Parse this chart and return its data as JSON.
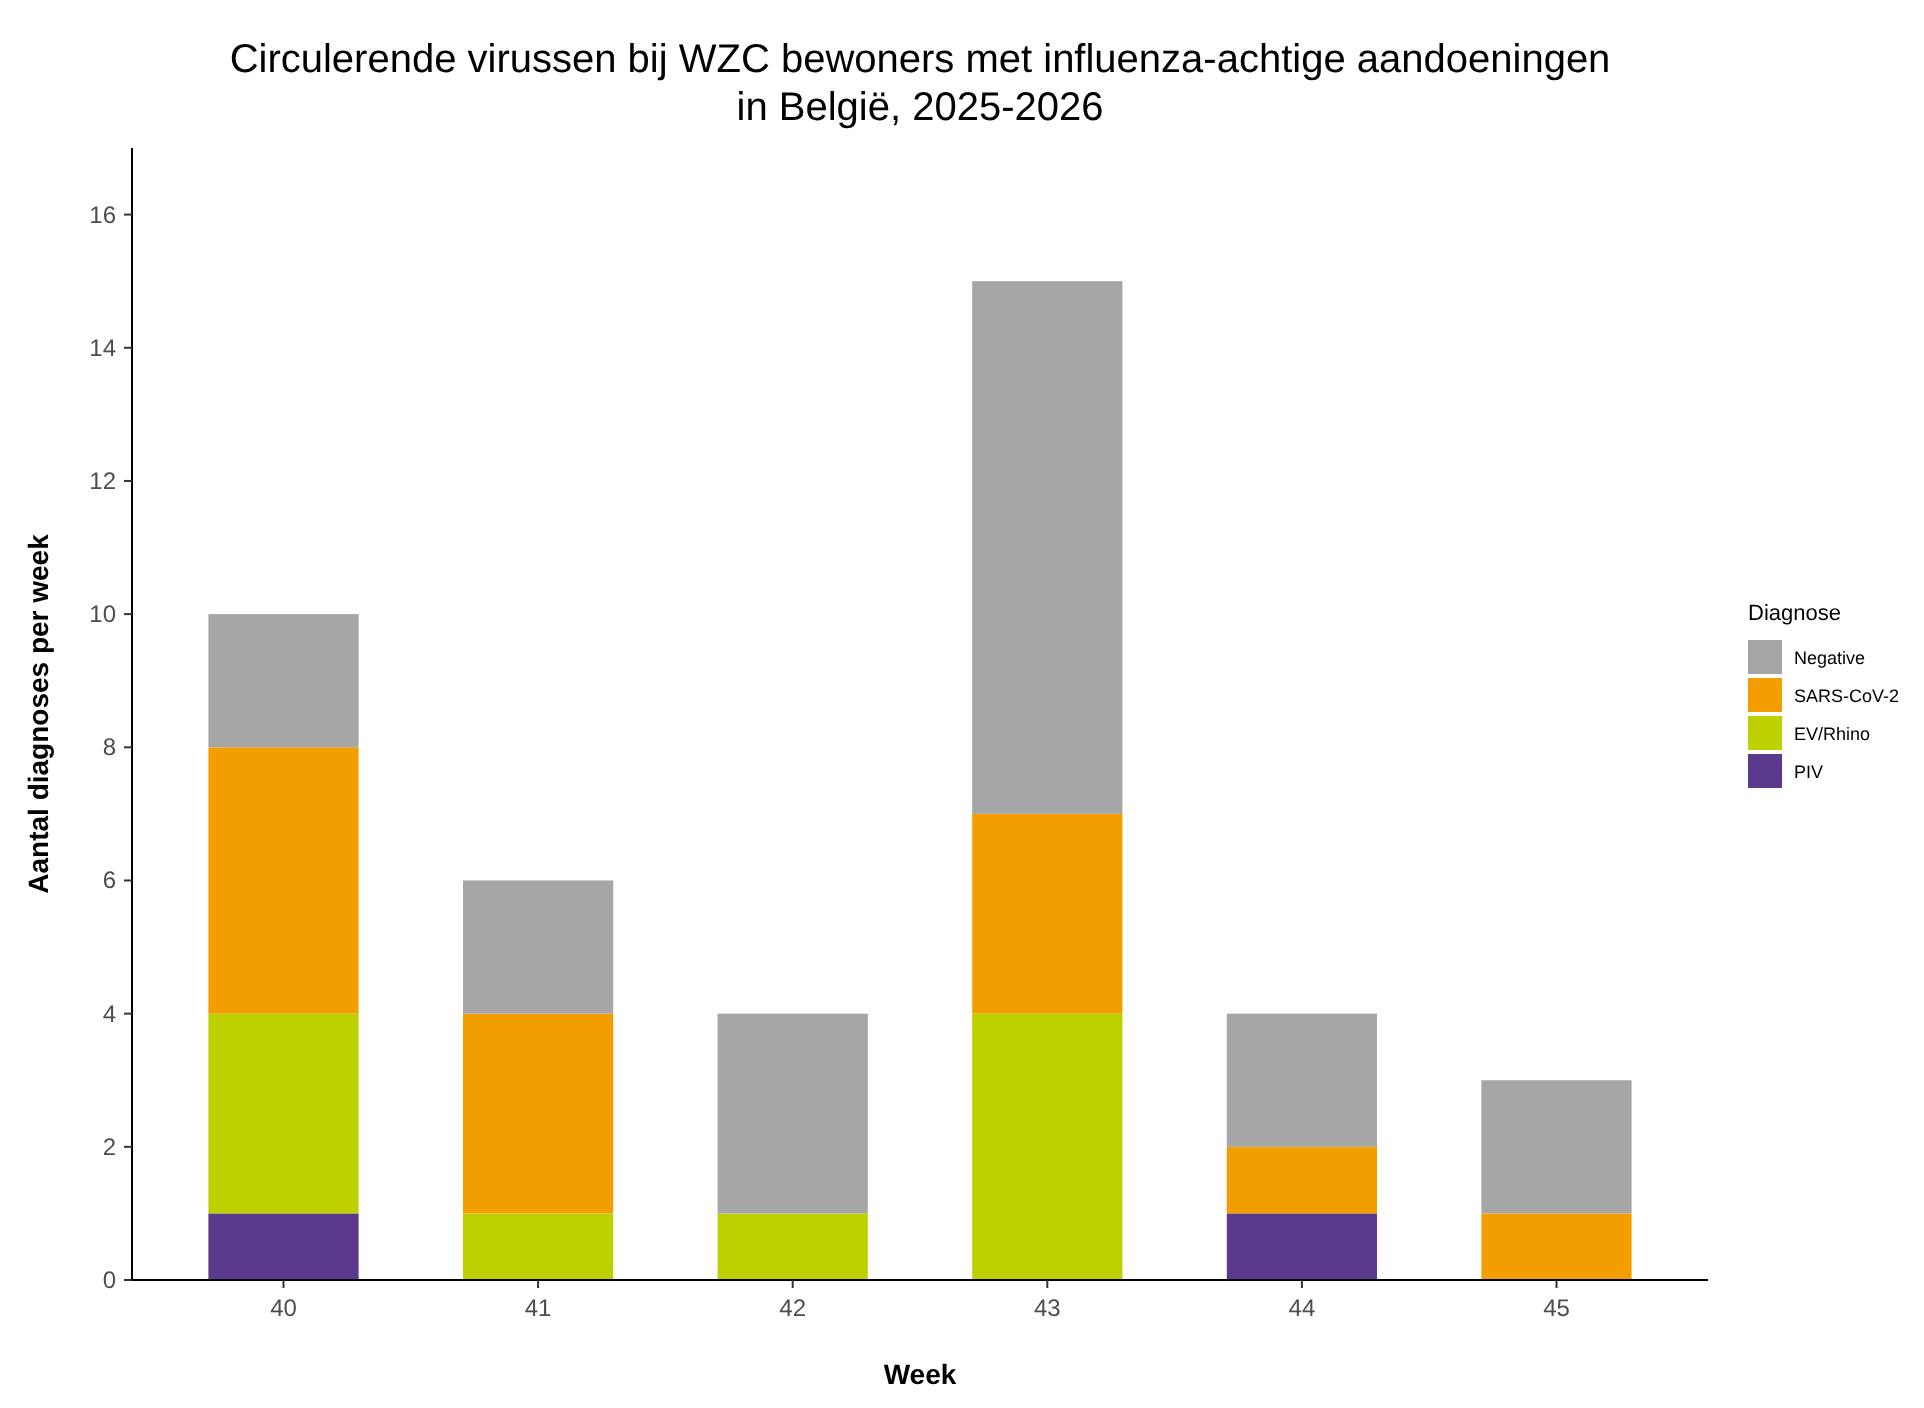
{
  "chart_data": {
    "type": "bar",
    "title": "Circulerende virussen bij WZC bewoners met influenza-achtige aandoeningen\nin België, 2025-2026",
    "xlabel": "Week",
    "ylabel": "Aantal diagnoses per week",
    "legend_title": "Diagnose",
    "categories": [
      "40",
      "41",
      "42",
      "43",
      "44",
      "45"
    ],
    "stacked": true,
    "ylim": [
      0,
      17
    ],
    "yticks": [
      0,
      2,
      4,
      6,
      8,
      10,
      12,
      14,
      16
    ],
    "grid": false,
    "legend": "right",
    "series": [
      {
        "name": "PIV",
        "color": "#5b3a8e",
        "values": [
          1,
          0,
          0,
          0,
          1,
          0
        ]
      },
      {
        "name": "EV/Rhino",
        "color": "#bdd000",
        "values": [
          3,
          1,
          1,
          4,
          0,
          0
        ]
      },
      {
        "name": "SARS-CoV-2",
        "color": "#f29e00",
        "values": [
          4,
          3,
          0,
          3,
          1,
          1
        ]
      },
      {
        "name": "Negative",
        "color": "#a6a6a6",
        "values": [
          2,
          2,
          3,
          8,
          2,
          2
        ]
      }
    ]
  }
}
